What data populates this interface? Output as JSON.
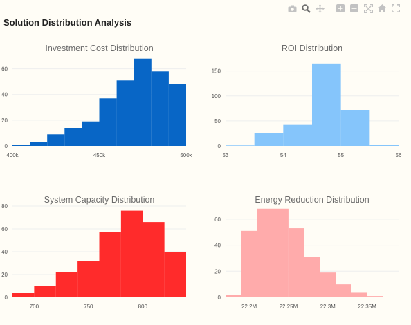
{
  "page": {
    "title": "Solution Distribution Analysis"
  },
  "modebar": {
    "buttons": [
      "camera-icon",
      "zoom-icon",
      "pan-icon",
      "zoom-in-icon",
      "zoom-out-icon",
      "autoscale-icon",
      "home-icon",
      "fullscreen-icon"
    ]
  },
  "chart_data": [
    {
      "type": "bar",
      "title": "Investment Cost Distribution",
      "color": "#0866c6",
      "x_range": [
        400,
        500
      ],
      "y_range": [
        0,
        70
      ],
      "x_ticks": [
        {
          "value": 400,
          "label": "400k"
        },
        {
          "value": 450,
          "label": "450k"
        },
        {
          "value": 500,
          "label": "500k"
        }
      ],
      "y_ticks": [
        {
          "value": 0,
          "label": "0"
        },
        {
          "value": 20,
          "label": "20"
        },
        {
          "value": 40,
          "label": "40"
        },
        {
          "value": 60,
          "label": "60"
        }
      ],
      "bins": [
        {
          "x0": 400,
          "x1": 410,
          "count": 1
        },
        {
          "x0": 410,
          "x1": 420,
          "count": 3
        },
        {
          "x0": 420,
          "x1": 430,
          "count": 9
        },
        {
          "x0": 430,
          "x1": 440,
          "count": 14
        },
        {
          "x0": 440,
          "x1": 450,
          "count": 19
        },
        {
          "x0": 450,
          "x1": 460,
          "count": 37
        },
        {
          "x0": 460,
          "x1": 470,
          "count": 51
        },
        {
          "x0": 470,
          "x1": 480,
          "count": 68
        },
        {
          "x0": 480,
          "x1": 490,
          "count": 58
        },
        {
          "x0": 490,
          "x1": 500,
          "count": 48
        }
      ]
    },
    {
      "type": "bar",
      "title": "ROI Distribution",
      "color": "#85c5fb",
      "x_range": [
        53,
        56
      ],
      "y_range": [
        0,
        180
      ],
      "x_ticks": [
        {
          "value": 53,
          "label": "53"
        },
        {
          "value": 54,
          "label": "54"
        },
        {
          "value": 55,
          "label": "55"
        },
        {
          "value": 56,
          "label": "56"
        }
      ],
      "y_ticks": [
        {
          "value": 0,
          "label": "0"
        },
        {
          "value": 50,
          "label": "50"
        },
        {
          "value": 100,
          "label": "100"
        },
        {
          "value": 150,
          "label": "150"
        }
      ],
      "bins": [
        {
          "x0": 53.0,
          "x1": 53.5,
          "count": 1
        },
        {
          "x0": 53.5,
          "x1": 54.0,
          "count": 25
        },
        {
          "x0": 54.0,
          "x1": 54.5,
          "count": 42
        },
        {
          "x0": 54.5,
          "x1": 55.0,
          "count": 165
        },
        {
          "x0": 55.0,
          "x1": 55.5,
          "count": 72
        },
        {
          "x0": 55.5,
          "x1": 56.0,
          "count": 2
        }
      ]
    },
    {
      "type": "bar",
      "title": "System Capacity Distribution",
      "color": "#ff2b2b",
      "x_range": [
        680,
        840
      ],
      "y_range": [
        0,
        80
      ],
      "x_ticks": [
        {
          "value": 700,
          "label": "700"
        },
        {
          "value": 750,
          "label": "750"
        },
        {
          "value": 800,
          "label": "800"
        }
      ],
      "y_ticks": [
        {
          "value": 0,
          "label": "0"
        },
        {
          "value": 20,
          "label": "20"
        },
        {
          "value": 40,
          "label": "40"
        },
        {
          "value": 60,
          "label": "60"
        },
        {
          "value": 80,
          "label": "80"
        }
      ],
      "bins": [
        {
          "x0": 680,
          "x1": 700,
          "count": 4
        },
        {
          "x0": 700,
          "x1": 720,
          "count": 10
        },
        {
          "x0": 720,
          "x1": 740,
          "count": 22
        },
        {
          "x0": 740,
          "x1": 760,
          "count": 32
        },
        {
          "x0": 760,
          "x1": 780,
          "count": 57
        },
        {
          "x0": 780,
          "x1": 800,
          "count": 76
        },
        {
          "x0": 800,
          "x1": 820,
          "count": 66
        },
        {
          "x0": 820,
          "x1": 840,
          "count": 40
        }
      ]
    },
    {
      "type": "bar",
      "title": "Energy Reduction Distribution",
      "color": "#ffabab",
      "x_range": [
        22.17,
        22.39
      ],
      "y_range": [
        0,
        70
      ],
      "x_ticks": [
        {
          "value": 22.2,
          "label": "22.2M"
        },
        {
          "value": 22.25,
          "label": "22.25M"
        },
        {
          "value": 22.3,
          "label": "22.3M"
        },
        {
          "value": 22.35,
          "label": "22.35M"
        }
      ],
      "y_ticks": [
        {
          "value": 0,
          "label": "0"
        },
        {
          "value": 20,
          "label": "20"
        },
        {
          "value": 40,
          "label": "40"
        },
        {
          "value": 60,
          "label": "60"
        }
      ],
      "bins": [
        {
          "x0": 22.17,
          "x1": 22.19,
          "count": 2
        },
        {
          "x0": 22.19,
          "x1": 22.21,
          "count": 51
        },
        {
          "x0": 22.21,
          "x1": 22.23,
          "count": 68
        },
        {
          "x0": 22.23,
          "x1": 22.25,
          "count": 68
        },
        {
          "x0": 22.25,
          "x1": 22.27,
          "count": 53
        },
        {
          "x0": 22.27,
          "x1": 22.29,
          "count": 31
        },
        {
          "x0": 22.29,
          "x1": 22.31,
          "count": 19
        },
        {
          "x0": 22.31,
          "x1": 22.33,
          "count": 10
        },
        {
          "x0": 22.33,
          "x1": 22.35,
          "count": 4
        },
        {
          "x0": 22.35,
          "x1": 22.37,
          "count": 1
        }
      ]
    }
  ]
}
